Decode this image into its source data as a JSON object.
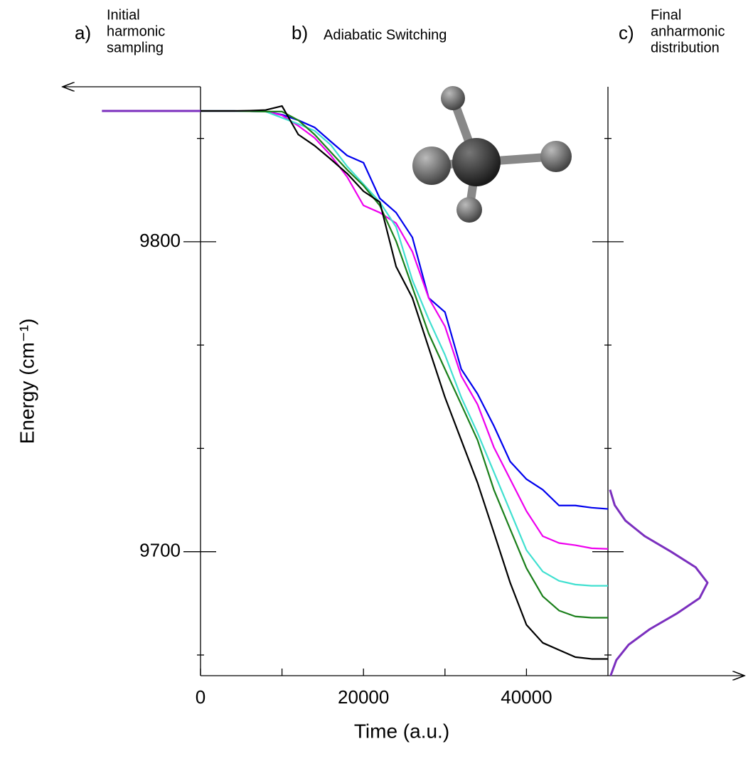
{
  "chart_data": {
    "type": "line",
    "xlabel": "Time (a.u.)",
    "ylabel": "Energy (cm⁻¹)",
    "xlim": [
      0,
      50000
    ],
    "ylim": [
      9660,
      9850
    ],
    "xticks": [
      0,
      20000,
      40000
    ],
    "minor_xticks": [
      10000,
      30000
    ],
    "yticks": [
      9700,
      9800
    ],
    "minor_yticks": [
      9666.67,
      9733.33,
      9766.67,
      9833.33
    ],
    "panels": [
      {
        "tag": "a)",
        "text": [
          "Initial",
          "harmonic",
          "sampling"
        ]
      },
      {
        "tag": "b)",
        "text": [
          "Adiabatic Switching"
        ]
      },
      {
        "tag": "c)",
        "text": [
          "Final",
          "anharmonic",
          "distribution"
        ]
      }
    ],
    "initial_line": {
      "color": "#7b2fbe",
      "x": [
        -12100,
        0
      ],
      "values": [
        9842.2,
        9842.2
      ]
    },
    "x": [
      0,
      4000,
      6000,
      8000,
      10000,
      12000,
      14000,
      16000,
      18000,
      20000,
      22000,
      24000,
      26000,
      28000,
      30000,
      32000,
      34000,
      36000,
      38000,
      40000,
      42000,
      44000,
      46000,
      48000,
      50000
    ],
    "series": [
      {
        "color": "#0000ee",
        "values": [
          9842.2,
          9842.2,
          9842.1,
          9842,
          9841,
          9839.2,
          9836.9,
          9832.3,
          9827.8,
          9825.5,
          9814,
          9809.4,
          9801.4,
          9781.9,
          9777.3,
          9758.9,
          9750.9,
          9740.6,
          9729.1,
          9723.4,
          9720,
          9714.9,
          9714.9,
          9714.2,
          9713.8
        ]
      },
      {
        "color": "#ee00ee",
        "values": [
          9842.2,
          9842.2,
          9842.1,
          9842,
          9840.8,
          9837.4,
          9833.5,
          9827.8,
          9820.9,
          9811.7,
          9809.4,
          9806,
          9796.8,
          9781.9,
          9772.7,
          9756.7,
          9747.5,
          9733.7,
          9723.4,
          9713.1,
          9705,
          9702.8,
          9702.1,
          9701.1,
          9700.9
        ]
      },
      {
        "color": "#40e0d0",
        "values": [
          9842.2,
          9842.2,
          9842.1,
          9842,
          9840,
          9838,
          9835.8,
          9831.2,
          9824.3,
          9818.6,
          9812.8,
          9804.8,
          9787.6,
          9775,
          9763.5,
          9749.8,
          9738.3,
          9725.7,
          9713.1,
          9700.5,
          9693.6,
          9690.6,
          9689.4,
          9689,
          9689
        ]
      },
      {
        "color": "#1a7f1a",
        "values": [
          9842.2,
          9842.2,
          9842.1,
          9842,
          9842,
          9839.2,
          9834.6,
          9828.9,
          9823.2,
          9818.1,
          9811.7,
          9800.2,
          9785.3,
          9770.4,
          9758.9,
          9747.5,
          9736,
          9720,
          9707.3,
          9694.7,
          9685.6,
          9681,
          9679.1,
          9678.7,
          9678.7
        ]
      },
      {
        "color": "#000000",
        "values": [
          9842.2,
          9842.2,
          9842.3,
          9842.5,
          9843.8,
          9834.6,
          9831,
          9826.6,
          9822,
          9816.3,
          9812.8,
          9792,
          9781.9,
          9765.8,
          9749.8,
          9736,
          9722.2,
          9706.2,
          9690,
          9676.4,
          9670.6,
          9668.3,
          9666,
          9665.4,
          9665.4
        ]
      }
    ],
    "distribution": {
      "color": "#7b2fbe",
      "xlim": [
        0,
        1
      ],
      "energies": [
        9660,
        9665,
        9670,
        9675,
        9680,
        9685,
        9690,
        9695,
        9700,
        9705,
        9710,
        9715,
        9720
      ],
      "values": [
        0.027,
        0.084,
        0.208,
        0.42,
        0.689,
        0.92,
        1.0,
        0.88,
        0.634,
        0.37,
        0.176,
        0.068,
        0.021
      ]
    }
  }
}
